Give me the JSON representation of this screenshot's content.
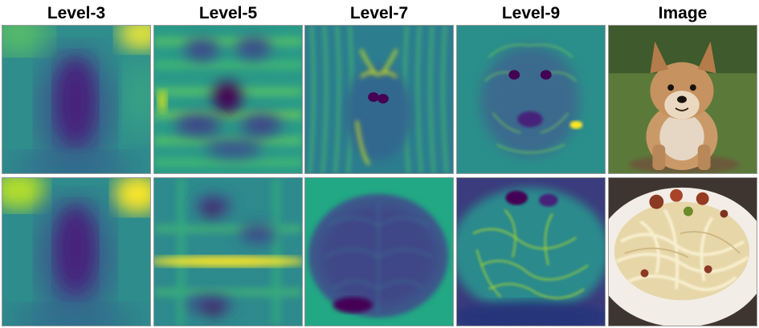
{
  "columns": [
    {
      "label": "Level-3"
    },
    {
      "label": "Level-5"
    },
    {
      "label": "Level-7"
    },
    {
      "label": "Level-9"
    },
    {
      "label": "Image"
    }
  ],
  "rows": [
    {
      "subject": "dog"
    },
    {
      "subject": "pasta"
    }
  ],
  "colors": {
    "viridis_dark": "#440154",
    "viridis_mid": "#21918c",
    "viridis_light": "#5ec962",
    "viridis_yellow": "#fde725"
  }
}
